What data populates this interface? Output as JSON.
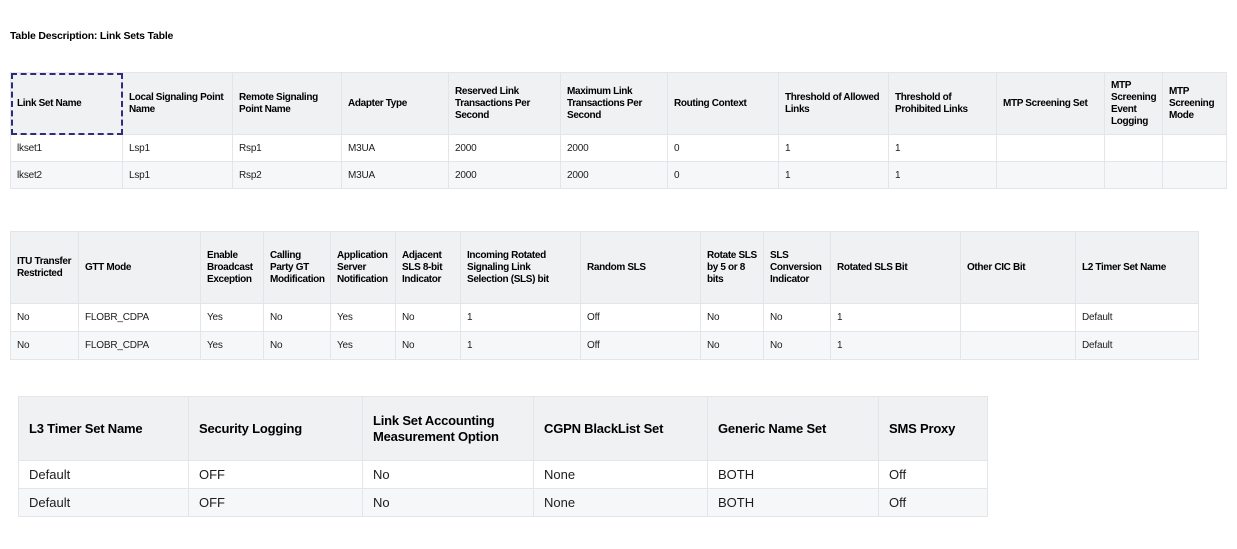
{
  "page": {
    "title": "Table Description: Link Sets Table"
  },
  "colors": {
    "header_bg": "#f0f1f2",
    "alt_row_bg": "#f6f7f8",
    "cell_border": "#e4e5e9",
    "focus_outline": "#2d2d80",
    "text": "#1c1c1c"
  },
  "tables": [
    {
      "name": "link-sets-table",
      "headers": [
        "Link Set Name",
        "Local Signaling Point Name",
        "Remote Signaling Point Name",
        "Adapter Type",
        "Reserved Link Transactions Per Second",
        "Maximum Link Transactions Per Second",
        "Routing Context",
        "Threshold of Allowed Links",
        "Threshold of Prohibited Links",
        "MTP Screening Set",
        "MTP Screening Event Logging",
        "MTP Screening Mode"
      ],
      "rows": [
        [
          "lkset1",
          "Lsp1",
          "Rsp1",
          "M3UA",
          "2000",
          "2000",
          "0",
          "1",
          "1",
          "",
          "",
          ""
        ],
        [
          "lkset2",
          "Lsp1",
          "Rsp2",
          "M3UA",
          "2000",
          "2000",
          "0",
          "1",
          "1",
          "",
          "",
          ""
        ]
      ]
    },
    {
      "name": "link-sets-options-table",
      "headers": [
        "ITU Transfer Restricted",
        "GTT Mode",
        "Enable Broadcast Exception",
        "Calling Party GT Modification",
        "Application Server Notification",
        "Adjacent SLS 8-bit Indicator",
        "Incoming Rotated Signaling Link Selection (SLS) bit",
        "Random SLS",
        "Rotate SLS by 5 or 8 bits",
        "SLS Conversion Indicator",
        "Rotated SLS Bit",
        "Other CIC Bit",
        "L2 Timer Set Name"
      ],
      "rows": [
        [
          "No",
          "FLOBR_CDPA",
          "Yes",
          "No",
          "Yes",
          "No",
          "1",
          "Off",
          "No",
          "No",
          "1",
          "",
          "Default"
        ],
        [
          "No",
          "FLOBR_CDPA",
          "Yes",
          "No",
          "Yes",
          "No",
          "1",
          "Off",
          "No",
          "No",
          "1",
          "",
          "Default"
        ]
      ]
    },
    {
      "name": "link-sets-extra-table",
      "headers": [
        "L3 Timer Set Name",
        "Security Logging",
        "Link Set Accounting Measurement Option",
        "CGPN BlackList Set",
        "Generic Name Set",
        "SMS Proxy"
      ],
      "rows": [
        [
          "Default",
          "OFF",
          "No",
          "None",
          "BOTH",
          "Off"
        ],
        [
          "Default",
          "OFF",
          "No",
          "None",
          "BOTH",
          "Off"
        ]
      ]
    }
  ]
}
